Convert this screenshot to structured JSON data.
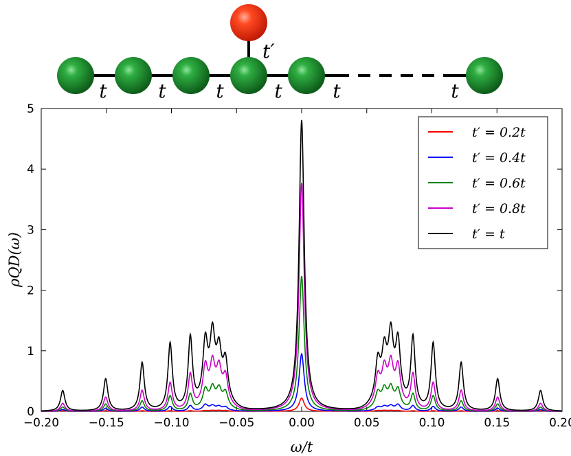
{
  "diagram": {
    "chain_hopping_labels": [
      "t",
      "t",
      "t",
      "t",
      "t",
      "t"
    ],
    "dot_hopping_label": "t′",
    "chain_color": "#1e8c2e",
    "dot_color": "#ff3b1e"
  },
  "chart_data": {
    "type": "line",
    "xlabel": "ω/t",
    "ylabel": "ρQD(ω)",
    "xlim": [
      -0.2,
      0.2
    ],
    "ylim": [
      0,
      5
    ],
    "xticks": [
      "−0.20",
      "−0.15",
      "−0.10",
      "−0.05",
      "0.00",
      "0.05",
      "0.10",
      "0.15",
      "0.20"
    ],
    "yticks": [
      "0",
      "1",
      "2",
      "3",
      "4",
      "5"
    ],
    "legend_position": "top-right",
    "grid": false,
    "side_peaks_x": [
      0.0585,
      0.0635,
      0.0685,
      0.074,
      0.0855,
      0.101,
      0.1225,
      0.1505,
      0.1835
    ],
    "series": [
      {
        "name": "t′ = 0.2t",
        "color": "#ff0000",
        "center_peak": 0.22,
        "side_peaks": [
          0.01,
          0.01,
          0.01,
          0.01,
          0.01,
          0.01,
          0.01,
          0.01,
          0.01
        ],
        "shoulder": 0.01
      },
      {
        "name": "t′ = 0.4t",
        "color": "#0000ff",
        "center_peak": 0.95,
        "side_peaks": [
          0.05,
          0.05,
          0.06,
          0.09,
          0.09,
          0.08,
          0.07,
          0.05,
          0.03
        ],
        "shoulder": 0.05
      },
      {
        "name": "t′ = 0.6t",
        "color": "#008000",
        "center_peak": 2.23,
        "side_peaks": [
          0.22,
          0.23,
          0.25,
          0.27,
          0.27,
          0.25,
          0.17,
          0.12,
          0.07
        ],
        "shoulder": 0.22
      },
      {
        "name": "t′ = 0.8t",
        "color": "#cc00cc",
        "center_peak": 3.77,
        "side_peaks": [
          0.4,
          0.45,
          0.53,
          0.57,
          0.58,
          0.46,
          0.34,
          0.23,
          0.13
        ],
        "shoulder": 0.4
      },
      {
        "name": "t′ = t",
        "color": "#000000",
        "center_peak": 4.8,
        "side_peaks": [
          0.58,
          0.64,
          0.9,
          0.9,
          1.17,
          1.1,
          0.79,
          0.53,
          0.34
        ],
        "shoulder": 0.55
      }
    ]
  }
}
